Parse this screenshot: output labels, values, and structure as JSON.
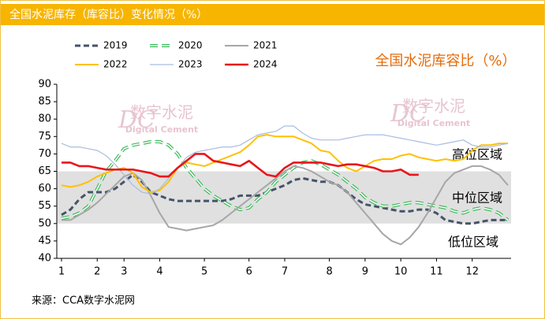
{
  "header": {
    "title": "全国水泥库存（库容比）变化情况（%）"
  },
  "source": "来源：CCA数字水泥网",
  "chart_data": {
    "type": "line",
    "title": "全国水泥库容比（%）",
    "watermark": {
      "logo": "DC",
      "text": "数字水泥",
      "subtext": "Digital Cement"
    },
    "annotations": [
      "高位区域",
      "中位区域",
      "低位区域"
    ],
    "band": [
      50,
      65
    ],
    "band_color": "#e0e0e0",
    "x": [
      1,
      2,
      3,
      4,
      5,
      6,
      7,
      8,
      9,
      10,
      11,
      12,
      13,
      14,
      15,
      16,
      17,
      18,
      19,
      20,
      21,
      22,
      23,
      24,
      25,
      26,
      27,
      28,
      29,
      30,
      31,
      32,
      33,
      34,
      35,
      36,
      37,
      38,
      39,
      40,
      41,
      42,
      43,
      44,
      45,
      46,
      47,
      48,
      49,
      50,
      51
    ],
    "xlim": [
      1,
      51
    ],
    "xticks": [
      {
        "value": 1,
        "label": "1"
      },
      {
        "value": 5,
        "label": "2"
      },
      {
        "value": 8,
        "label": "3"
      },
      {
        "value": 12,
        "label": "4"
      },
      {
        "value": 17,
        "label": "5"
      },
      {
        "value": 22,
        "label": "6"
      },
      {
        "value": 26,
        "label": "7"
      },
      {
        "value": 31,
        "label": "8"
      },
      {
        "value": 35,
        "label": "9"
      },
      {
        "value": 39,
        "label": "10"
      },
      {
        "value": 43,
        "label": "11"
      },
      {
        "value": 47,
        "label": "12"
      }
    ],
    "ylim": [
      40,
      90
    ],
    "yticks": [
      40,
      45,
      50,
      55,
      60,
      65,
      70,
      75,
      80,
      85,
      90
    ],
    "grid": false,
    "series": [
      {
        "name": "2019",
        "color": "#44546a",
        "style": "dashed",
        "values": [
          52.5,
          54,
          57,
          59,
          59,
          59,
          60,
          62,
          64,
          62,
          59,
          58,
          57,
          56.5,
          56.5,
          56.5,
          56.5,
          56.5,
          56.5,
          57,
          58,
          58,
          58,
          59,
          60,
          61,
          62.5,
          63,
          62.5,
          62,
          62,
          61,
          59,
          57,
          55.5,
          55,
          54.5,
          54,
          53.5,
          53.5,
          54,
          54,
          53,
          51,
          50.5,
          50,
          50,
          50.5,
          51,
          51,
          51
        ]
      },
      {
        "name": "2020",
        "color": "#3cb95a",
        "style": "hollow-dashed",
        "values": [
          51.5,
          52,
          53,
          55,
          60,
          65,
          68,
          71.5,
          72.5,
          73,
          73.5,
          73.5,
          72.5,
          70,
          66,
          63,
          60,
          58,
          56.5,
          55,
          54,
          54.5,
          57,
          59,
          62,
          64,
          66,
          67.5,
          68,
          67,
          65.5,
          64,
          62,
          60,
          57.5,
          56,
          55,
          55,
          55.5,
          56,
          56,
          55.5,
          55,
          54.5,
          53.5,
          53,
          54,
          54.5,
          54,
          53,
          51
        ]
      },
      {
        "name": "2021",
        "color": "#a6a6a6",
        "style": "solid",
        "values": [
          51,
          51,
          52.5,
          54,
          56,
          58.5,
          61,
          63.5,
          64.5,
          62.5,
          58,
          53,
          49,
          48.5,
          48,
          48.5,
          49,
          49.5,
          51,
          53,
          55,
          57,
          59,
          61,
          63,
          65,
          66.5,
          66,
          65,
          63.5,
          62,
          61,
          59,
          56,
          53,
          50,
          47,
          45,
          44,
          46,
          49,
          53,
          57.5,
          62,
          64.5,
          65.5,
          66.5,
          66.5,
          65.5,
          64,
          61
        ]
      },
      {
        "name": "2022",
        "color": "#ffc000",
        "style": "solid",
        "values": [
          61,
          60.5,
          61,
          62,
          63.5,
          64.5,
          65.5,
          66,
          64.5,
          60.5,
          59,
          59.5,
          62,
          66,
          67.5,
          67,
          66.5,
          67.5,
          68.5,
          69.5,
          70.5,
          72.5,
          75,
          75.5,
          75,
          75,
          75,
          74,
          73,
          71,
          70.5,
          68,
          66,
          65,
          66.5,
          68,
          68.5,
          68.5,
          69.5,
          70,
          69,
          68.5,
          68,
          68.5,
          68,
          68.5,
          71,
          72.5,
          72.5,
          73,
          73
        ]
      },
      {
        "name": "2023",
        "color": "#a9bde0",
        "style": "thin",
        "values": [
          73,
          72,
          72,
          71.5,
          71,
          69.5,
          67,
          64,
          61,
          59,
          58.5,
          60,
          63,
          66,
          69,
          70.5,
          71,
          71.5,
          72,
          72,
          72.5,
          74,
          75.5,
          76,
          76.5,
          78,
          78,
          76,
          74.5,
          74,
          74,
          74,
          74.5,
          75,
          75.5,
          75.5,
          75.5,
          75,
          74.5,
          74,
          73.5,
          73,
          72.5,
          73,
          73.5,
          74,
          72.5,
          72,
          72,
          72.5,
          73
        ]
      },
      {
        "name": "2024",
        "color": "#e8161b",
        "style": "bold",
        "values": [
          67.5,
          67.5,
          66.5,
          66.5,
          66,
          65.5,
          65.5,
          65.5,
          65.5,
          65,
          64.5,
          63.5,
          63.5,
          66,
          68,
          70,
          70,
          68,
          67.5,
          67,
          66.5,
          68,
          66,
          64,
          63.5,
          66,
          67.5,
          67.5,
          67.5,
          67.5,
          67,
          66.5,
          67,
          67,
          66.5,
          66,
          65,
          65,
          65.5,
          64,
          64,
          null,
          null,
          null,
          null,
          null,
          null,
          null,
          null,
          null,
          null
        ]
      }
    ]
  }
}
